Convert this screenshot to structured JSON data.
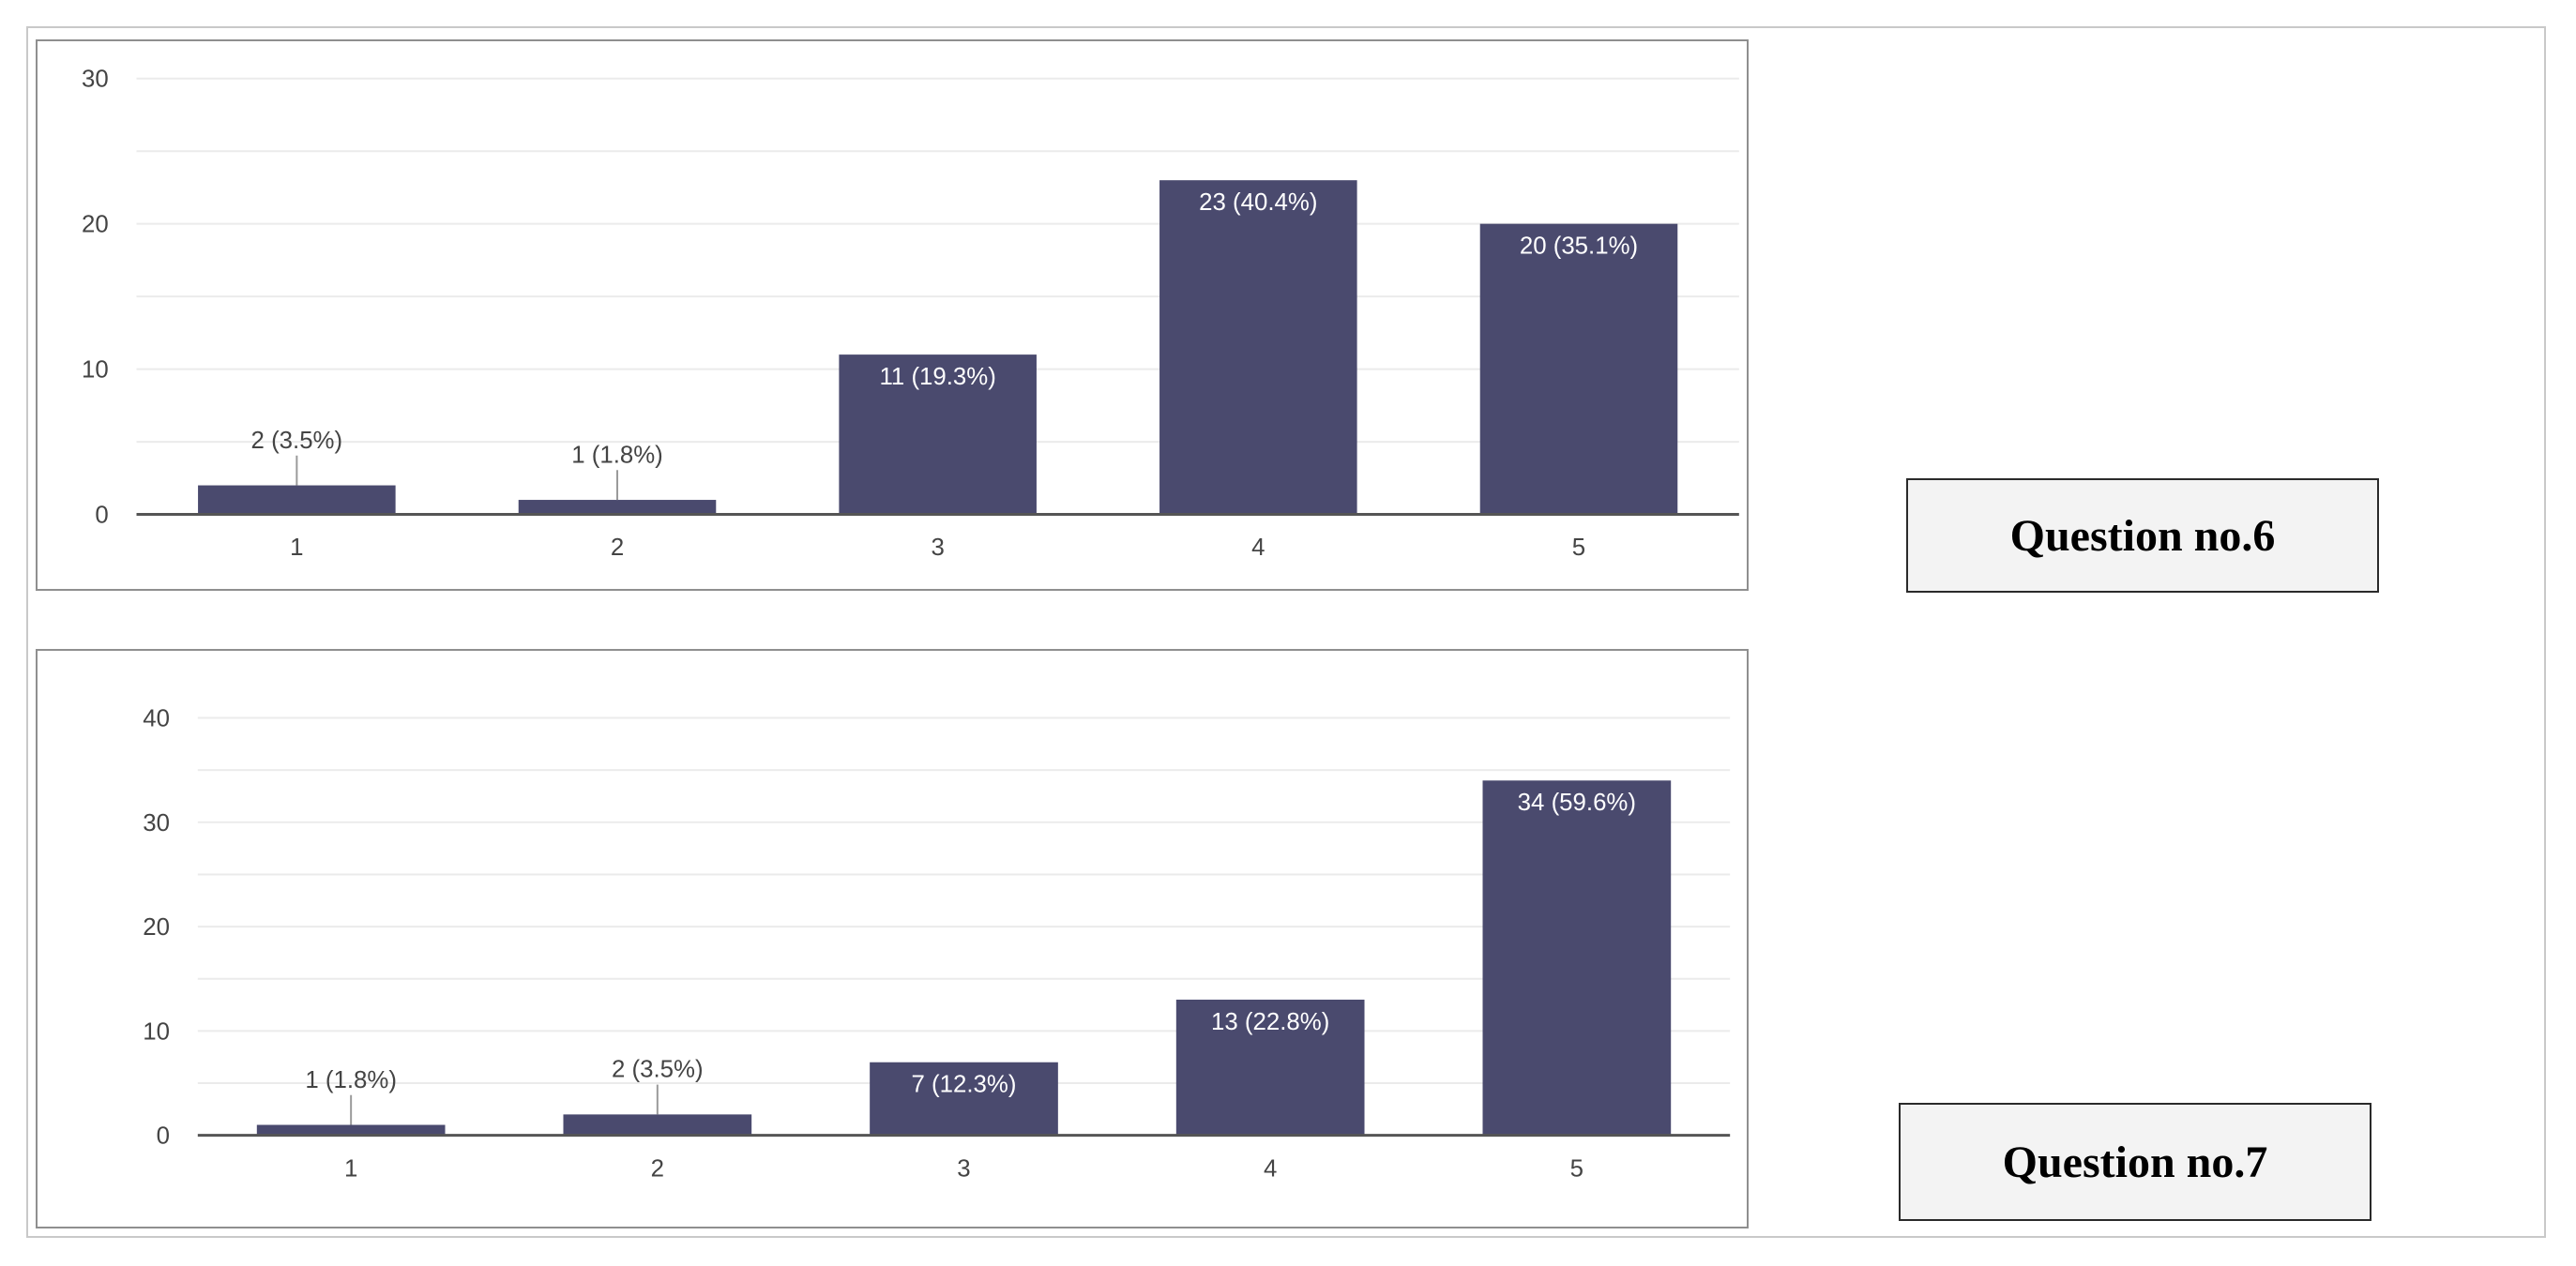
{
  "questions": {
    "q6_label": "Question no.6",
    "q7_label": "Question no.7"
  },
  "colors": {
    "bar": "#4a4a6e",
    "grid": "#ebebeb",
    "baseline": "#555555",
    "inside_label": "#ffffff",
    "outside_label": "#444444"
  },
  "chart_data": [
    {
      "type": "bar",
      "categories": [
        "1",
        "2",
        "3",
        "4",
        "5"
      ],
      "values": [
        2,
        1,
        11,
        23,
        20
      ],
      "data_labels": [
        "2 (3.5%)",
        "1 (1.8%)",
        "11 (19.3%)",
        "23 (40.4%)",
        "20 (35.1%)"
      ],
      "ylim": [
        0,
        30
      ],
      "yticks": [
        "0",
        "10",
        "20",
        "30"
      ],
      "grid": true
    },
    {
      "type": "bar",
      "categories": [
        "1",
        "2",
        "3",
        "4",
        "5"
      ],
      "values": [
        1,
        2,
        7,
        13,
        34
      ],
      "data_labels": [
        "1 (1.8%)",
        "2 (3.5%)",
        "7 (12.3%)",
        "13 (22.8%)",
        "34 (59.6%)"
      ],
      "ylim": [
        0,
        40
      ],
      "yticks": [
        "0",
        "10",
        "20",
        "30",
        "40"
      ],
      "grid": true
    }
  ]
}
